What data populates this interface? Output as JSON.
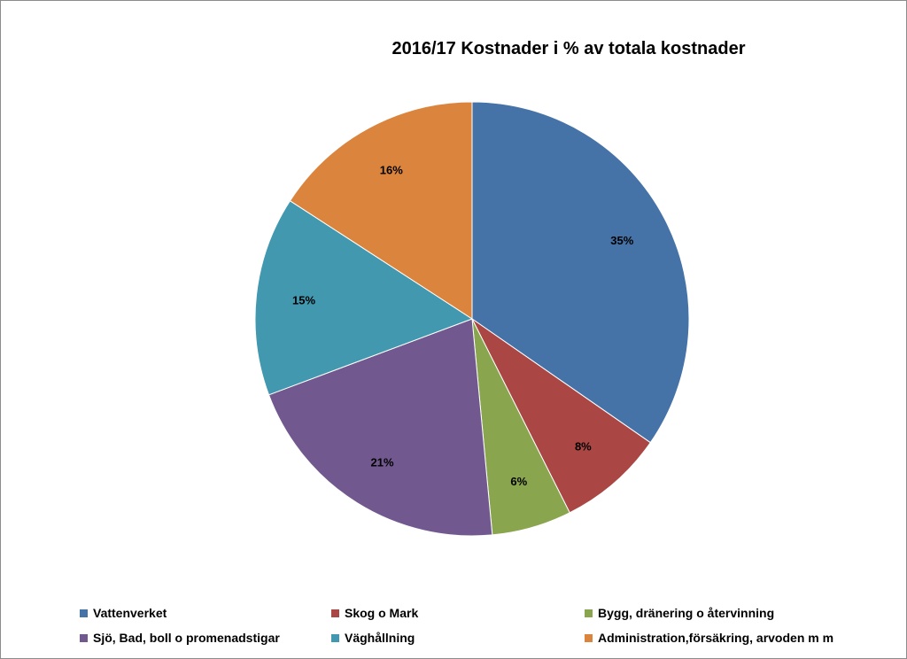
{
  "chart_data": {
    "type": "pie",
    "title": "2016/17 Kostnader i % av totala kostnader",
    "slices": [
      {
        "name": "Vattenverket",
        "value": 35,
        "label": "35%",
        "color": "#4572a7"
      },
      {
        "name": "Skog o Mark",
        "value": 8,
        "label": "8%",
        "color": "#aa4643"
      },
      {
        "name": "Bygg, dränering o återvinning",
        "value": 6,
        "label": "6%",
        "color": "#89a54e"
      },
      {
        "name": "Sjö, Bad, boll o promenadstigar",
        "value": 21,
        "label": "21%",
        "color": "#71588f"
      },
      {
        "name": "Väghållning",
        "value": 15,
        "label": "15%",
        "color": "#4198af"
      },
      {
        "name": "Administration,försäkring, arvoden m m",
        "value": 16,
        "label": "16%",
        "color": "#db843d"
      }
    ],
    "legend_position": "bottom"
  }
}
